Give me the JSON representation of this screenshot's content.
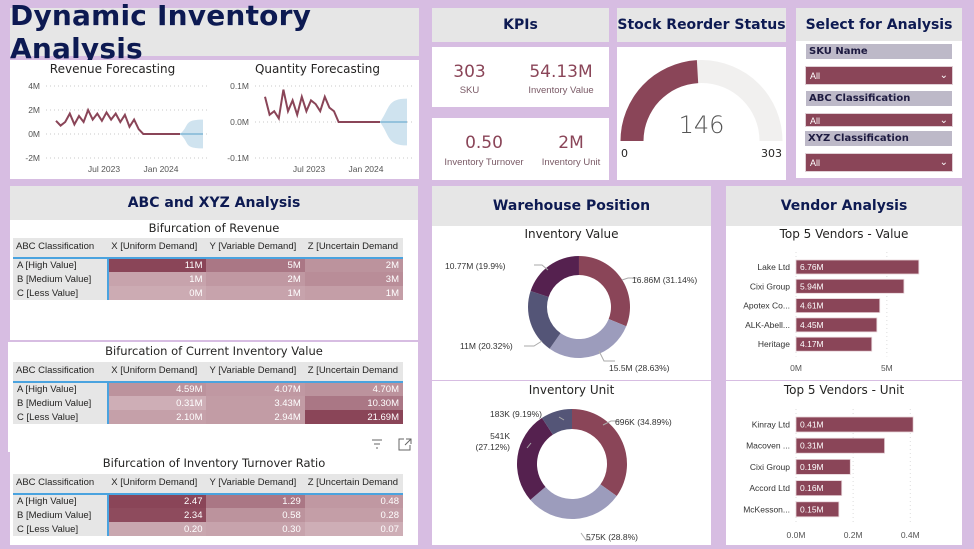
{
  "header": {
    "title": "Dynamic Inventory Analysis"
  },
  "forecast": {
    "revenue": {
      "title": "Revenue Forecasting",
      "y_ticks": [
        "4M",
        "2M",
        "0M",
        "-2M"
      ],
      "x_ticks": [
        "Jul 2023",
        "Jan 2024"
      ]
    },
    "quantity": {
      "title": "Quantity Forecasting",
      "y_ticks": [
        "0.1M",
        "0.0M",
        "-0.1M"
      ],
      "x_ticks": [
        "Jul 2023",
        "Jan 2024"
      ]
    }
  },
  "kpis": {
    "title": "KPIs",
    "items": [
      {
        "value": "303",
        "label": "SKU"
      },
      {
        "value": "54.13M",
        "label": "Inventory Value"
      },
      {
        "value": "0.50",
        "label": "Inventory Turnover"
      },
      {
        "value": "2M",
        "label": "Inventory Unit"
      }
    ]
  },
  "reorder": {
    "title": "Stock Reorder Status",
    "value": "146",
    "min": "0",
    "max": "303",
    "fraction": 0.4818
  },
  "slicers": {
    "title": "Select for Analysis",
    "items": [
      {
        "label": "SKU Name",
        "value": "All"
      },
      {
        "label": "ABC Classification",
        "value": "All"
      },
      {
        "label": "XYZ Classification",
        "value": "All"
      }
    ]
  },
  "abc_xyz": {
    "title": "ABC and XYZ Analysis",
    "columns": [
      "ABC Classification",
      "X [Uniform Demand]",
      "Y [Variable Demand]",
      "Z [Uncertain Demand"
    ],
    "rows": [
      "A [High Value]",
      "B [Medium Value]",
      "C [Less Value]"
    ],
    "matrices": [
      {
        "title": "Bifurcation of Revenue",
        "values": [
          [
            "11M",
            "5M",
            "2M"
          ],
          [
            "1M",
            "2M",
            "3M"
          ],
          [
            "0M",
            "1M",
            "1M"
          ]
        ],
        "intensity": [
          [
            1.0,
            0.55,
            0.3
          ],
          [
            0.15,
            0.25,
            0.35
          ],
          [
            0.08,
            0.15,
            0.2
          ]
        ]
      },
      {
        "title": "Bifurcation of Current Inventory Value",
        "values": [
          [
            "4.59M",
            "4.07M",
            "4.70M"
          ],
          [
            "0.31M",
            "3.43M",
            "10.30M"
          ],
          [
            "2.10M",
            "2.94M",
            "21.69M"
          ]
        ],
        "intensity": [
          [
            0.3,
            0.25,
            0.3
          ],
          [
            0.05,
            0.22,
            0.55
          ],
          [
            0.18,
            0.22,
            1.0
          ]
        ]
      },
      {
        "title": "Bifurcation of Inventory Turnover Ratio",
        "values": [
          [
            "2.47",
            "1.29",
            "0.48"
          ],
          [
            "2.34",
            "0.58",
            "0.28"
          ],
          [
            "0.20",
            "0.30",
            "0.07"
          ]
        ],
        "intensity": [
          [
            1.0,
            0.55,
            0.25
          ],
          [
            0.95,
            0.3,
            0.2
          ],
          [
            0.12,
            0.15,
            0.05
          ]
        ]
      }
    ]
  },
  "warehouse": {
    "title": "Warehouse Position",
    "charts": [
      {
        "title": "Inventory Value",
        "slices": [
          {
            "label": "16.86M (31.14%)",
            "pct": 31.14,
            "color": "#8a4558"
          },
          {
            "label": "15.5M (28.63%)",
            "pct": 28.63,
            "color": "#9c9cbc"
          },
          {
            "label": "11M (20.32%)",
            "pct": 20.32,
            "color": "#545577"
          },
          {
            "label": "10.77M (19.9%)",
            "pct": 19.9,
            "color": "#55214f"
          }
        ]
      },
      {
        "title": "Inventory Unit",
        "slices": [
          {
            "label": "696K (34.89%)",
            "pct": 34.89,
            "color": "#8a4558"
          },
          {
            "label": "575K (28.8%)",
            "pct": 28.8,
            "color": "#9c9cbc"
          },
          {
            "label": "541K (27.12%)",
            "pct": 27.12,
            "color": "#55214f"
          },
          {
            "label": "183K (9.19%)",
            "pct": 9.19,
            "color": "#545577"
          }
        ]
      }
    ]
  },
  "vendors": {
    "title": "Vendor Analysis",
    "charts": [
      {
        "title": "Top 5 Vendors - Value",
        "bars": [
          {
            "name": "Lake Ltd",
            "value": 6.76,
            "label": "6.76M"
          },
          {
            "name": "Cixi Group",
            "value": 5.94,
            "label": "5.94M"
          },
          {
            "name": "Apotex Co...",
            "value": 4.61,
            "label": "4.61M"
          },
          {
            "name": "ALK-Abell...",
            "value": 4.45,
            "label": "4.45M"
          },
          {
            "name": "Heritage",
            "value": 4.17,
            "label": "4.17M"
          }
        ],
        "x_ticks": [
          {
            "v": 0,
            "label": "0M"
          },
          {
            "v": 5,
            "label": "5M"
          }
        ],
        "xmax": 7.1
      },
      {
        "title": "Top 5 Vendors - Unit",
        "bars": [
          {
            "name": "Kinray Ltd",
            "value": 0.41,
            "label": "0.41M"
          },
          {
            "name": "Macoven ...",
            "value": 0.31,
            "label": "0.31M"
          },
          {
            "name": "Cixi Group",
            "value": 0.19,
            "label": "0.19M"
          },
          {
            "name": "Accord Ltd",
            "value": 0.16,
            "label": "0.16M"
          },
          {
            "name": "McKesson...",
            "value": 0.15,
            "label": "0.15M"
          }
        ],
        "x_ticks": [
          {
            "v": 0,
            "label": "0.0M"
          },
          {
            "v": 0.2,
            "label": "0.2M"
          },
          {
            "v": 0.4,
            "label": "0.4M"
          }
        ],
        "xmax": 0.42
      }
    ]
  },
  "chart_data": [
    {
      "type": "line",
      "title": "Revenue Forecasting",
      "ylabel": "",
      "xlabel": "",
      "ylim": [
        -2,
        4
      ],
      "y_unit": "M",
      "x_ticks": [
        "Jul 2023",
        "Jan 2024"
      ],
      "series": [
        {
          "name": "Revenue",
          "values": [
            1.1,
            0.7,
            1.0,
            1.7,
            0.8,
            1.5,
            1.0,
            2.0,
            1.2,
            1.7,
            1.1,
            1.8,
            1.2,
            1.7,
            1.0,
            1.6,
            0.6,
            1.2,
            0.4,
            0.0,
            0.0,
            0.0,
            0.0,
            0.0,
            0.0,
            0.0,
            0.0,
            0.0
          ]
        }
      ],
      "forecast": {
        "center": 0.0,
        "upper_end": 1.2,
        "lower_end": -1.2
      }
    },
    {
      "type": "line",
      "title": "Quantity Forecasting",
      "ylabel": "",
      "xlabel": "",
      "ylim": [
        -0.1,
        0.1
      ],
      "y_unit": "M",
      "x_ticks": [
        "Jul 2023",
        "Jan 2024"
      ],
      "series": [
        {
          "name": "Quantity",
          "values": [
            0.07,
            0.02,
            0.03,
            0.01,
            0.09,
            0.03,
            0.06,
            0.02,
            0.07,
            0.03,
            0.06,
            0.05,
            0.03,
            0.07,
            0.04,
            0.03,
            0.0,
            0.0,
            0.0,
            0.0,
            0.0,
            0.0,
            0.0,
            0.0,
            0.0,
            0.0
          ]
        }
      ],
      "forecast": {
        "center": 0.0,
        "upper_end": 0.065,
        "lower_end": -0.065
      }
    }
  ]
}
